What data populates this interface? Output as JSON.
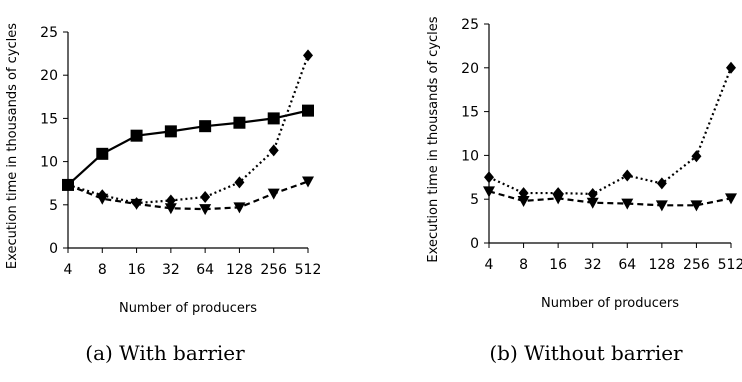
{
  "chart_data": [
    {
      "type": "line",
      "caption": "(a) With barrier",
      "xlabel": "Number of producers",
      "ylabel": "Execution time in thousands of cycles",
      "categories": [
        "4",
        "8",
        "16",
        "32",
        "64",
        "128",
        "256",
        "512"
      ],
      "ylim": [
        0,
        25
      ],
      "yticks": [
        0,
        5,
        10,
        15,
        20,
        25
      ],
      "grid": false,
      "series": [
        {
          "marker": "square",
          "style": "solid",
          "values": [
            7.3,
            10.9,
            13.0,
            13.5,
            14.1,
            14.5,
            15.0,
            15.9
          ]
        },
        {
          "marker": "diamond",
          "style": "dotted",
          "values": [
            7.3,
            6.1,
            5.2,
            5.5,
            5.9,
            7.6,
            11.3,
            22.3
          ]
        },
        {
          "marker": "triangle-down",
          "style": "dashed",
          "values": [
            7.3,
            5.7,
            5.1,
            4.6,
            4.5,
            4.7,
            6.3,
            7.7
          ]
        }
      ]
    },
    {
      "type": "line",
      "caption": "(b) Without barrier",
      "xlabel": "Number of producers",
      "ylabel": "Execution time in thousands of cycles",
      "categories": [
        "4",
        "8",
        "16",
        "32",
        "64",
        "128",
        "256",
        "512"
      ],
      "ylim": [
        0,
        25
      ],
      "yticks": [
        0,
        5,
        10,
        15,
        20,
        25
      ],
      "grid": false,
      "series": [
        {
          "marker": "diamond",
          "style": "dotted",
          "values": [
            7.5,
            5.7,
            5.7,
            5.6,
            7.7,
            6.8,
            9.9,
            20.0
          ]
        },
        {
          "marker": "triangle-down",
          "style": "dashed",
          "values": [
            5.9,
            4.8,
            5.1,
            4.6,
            4.5,
            4.3,
            4.3,
            5.1
          ]
        }
      ]
    }
  ]
}
